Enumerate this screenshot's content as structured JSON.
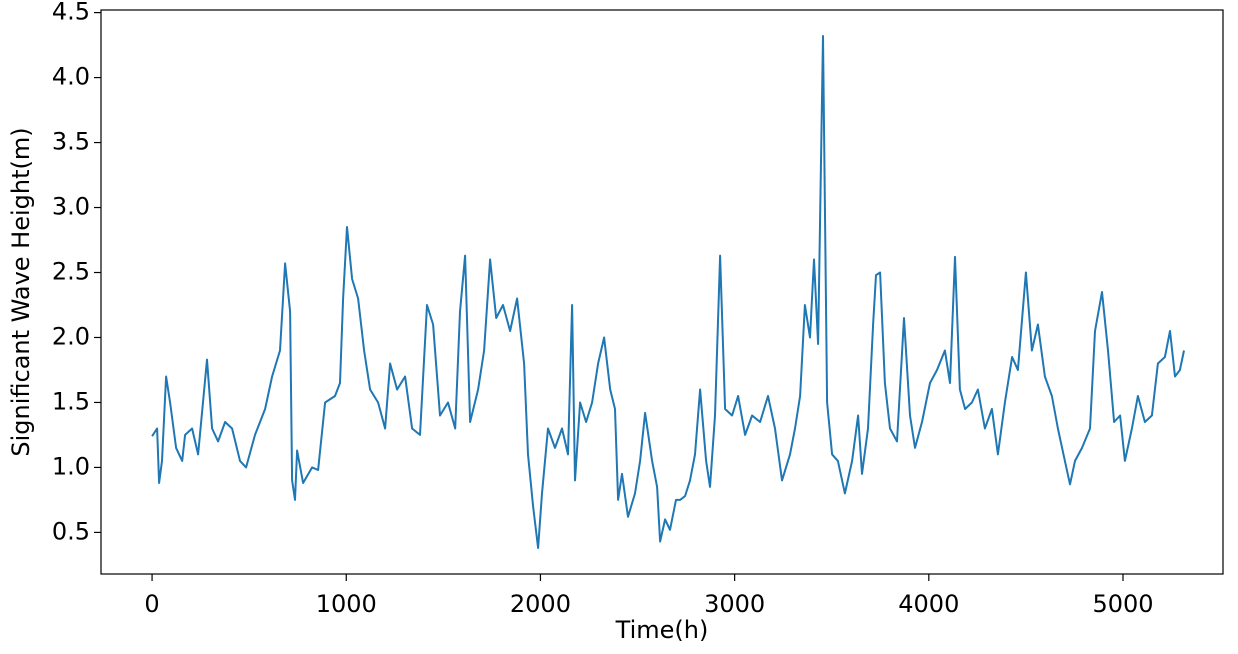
{
  "chart_data": {
    "type": "line",
    "xlabel": "Time(h)",
    "ylabel": "Significant Wave Height(m)",
    "xlim": [
      -263,
      5515
    ],
    "ylim": [
      0.18,
      4.52
    ],
    "xticks": [
      0,
      1000,
      2000,
      3000,
      4000,
      5000
    ],
    "yticks": [
      0.5,
      {
        "value": 1.0,
        "label": "1.0"
      },
      1.5,
      {
        "value": 2.0,
        "label": "2.0"
      },
      2.5,
      {
        "value": 3.0,
        "label": "3.0"
      },
      3.5,
      {
        "value": 4.0,
        "label": "4.0"
      },
      4.5
    ],
    "grid": false,
    "series": [
      {
        "color": "#1f77b4",
        "x": [
          0,
          26,
          36,
          51,
          72,
          93,
          124,
          155,
          170,
          206,
          237,
          283,
          309,
          340,
          376,
          412,
          453,
          484,
          530,
          582,
          618,
          659,
          685,
          711,
          721,
          736,
          747,
          778,
          824,
          855,
          891,
          942,
          968,
          984,
          1004,
          1030,
          1061,
          1092,
          1123,
          1164,
          1200,
          1226,
          1262,
          1303,
          1339,
          1380,
          1416,
          1447,
          1483,
          1524,
          1561,
          1586,
          1612,
          1638,
          1679,
          1710,
          1741,
          1772,
          1807,
          1844,
          1880,
          1916,
          1936,
          1962,
          1988,
          2008,
          2039,
          2075,
          2111,
          2142,
          2163,
          2178,
          2204,
          2235,
          2266,
          2297,
          2328,
          2359,
          2384,
          2400,
          2420,
          2451,
          2487,
          2513,
          2539,
          2575,
          2601,
          2616,
          2642,
          2667,
          2698,
          2719,
          2745,
          2770,
          2796,
          2822,
          2853,
          2873,
          2899,
          2925,
          2951,
          2987,
          3018,
          3054,
          3090,
          3131,
          3172,
          3208,
          3244,
          3285,
          3311,
          3337,
          3362,
          3388,
          3409,
          3430,
          3455,
          3476,
          3502,
          3532,
          3568,
          3605,
          3636,
          3656,
          3687,
          3713,
          3728,
          3749,
          3774,
          3800,
          3836,
          3872,
          3903,
          3929,
          3965,
          4006,
          4042,
          4083,
          4109,
          4135,
          4160,
          4187,
          4222,
          4253,
          4289,
          4325,
          4356,
          4392,
          4429,
          4459,
          4500,
          4531,
          4562,
          4598,
          4634,
          4665,
          4701,
          4727,
          4753,
          4789,
          4830,
          4856,
          4892,
          4923,
          4954,
          4985,
          5010,
          5046,
          5077,
          5113,
          5149,
          5180,
          5216,
          5242,
          5268,
          5293,
          5314
        ],
        "values": [
          1.24,
          1.3,
          0.88,
          1.05,
          1.7,
          1.5,
          1.15,
          1.05,
          1.25,
          1.3,
          1.1,
          1.83,
          1.3,
          1.2,
          1.35,
          1.3,
          1.05,
          1.0,
          1.25,
          1.45,
          1.7,
          1.9,
          2.57,
          2.2,
          0.9,
          0.75,
          1.13,
          0.88,
          1.0,
          0.98,
          1.5,
          1.55,
          1.65,
          2.3,
          2.85,
          2.45,
          2.3,
          1.9,
          1.6,
          1.5,
          1.3,
          1.8,
          1.6,
          1.7,
          1.3,
          1.25,
          2.25,
          2.1,
          1.4,
          1.5,
          1.3,
          2.2,
          2.63,
          1.35,
          1.6,
          1.9,
          2.6,
          2.15,
          2.25,
          2.05,
          2.3,
          1.8,
          1.1,
          0.7,
          0.38,
          0.8,
          1.3,
          1.15,
          1.3,
          1.1,
          2.25,
          0.9,
          1.5,
          1.35,
          1.5,
          1.8,
          2.0,
          1.6,
          1.45,
          0.75,
          0.95,
          0.62,
          0.8,
          1.05,
          1.42,
          1.05,
          0.85,
          0.43,
          0.6,
          0.52,
          0.75,
          0.75,
          0.78,
          0.9,
          1.1,
          1.6,
          1.05,
          0.85,
          1.4,
          2.63,
          1.45,
          1.4,
          1.55,
          1.25,
          1.4,
          1.35,
          1.55,
          1.3,
          0.9,
          1.1,
          1.3,
          1.55,
          2.25,
          2.0,
          2.6,
          1.95,
          4.32,
          1.5,
          1.1,
          1.05,
          0.8,
          1.05,
          1.4,
          0.95,
          1.3,
          2.1,
          2.48,
          2.5,
          1.65,
          1.3,
          1.2,
          2.15,
          1.4,
          1.15,
          1.35,
          1.65,
          1.75,
          1.9,
          1.65,
          2.62,
          1.6,
          1.45,
          1.5,
          1.6,
          1.3,
          1.45,
          1.1,
          1.5,
          1.85,
          1.75,
          2.5,
          1.9,
          2.1,
          1.7,
          1.55,
          1.3,
          1.05,
          0.87,
          1.05,
          1.15,
          1.3,
          2.05,
          2.35,
          1.9,
          1.35,
          1.4,
          1.05,
          1.3,
          1.55,
          1.35,
          1.4,
          1.8,
          1.85,
          2.05,
          1.7,
          1.75,
          1.9
        ]
      }
    ]
  }
}
